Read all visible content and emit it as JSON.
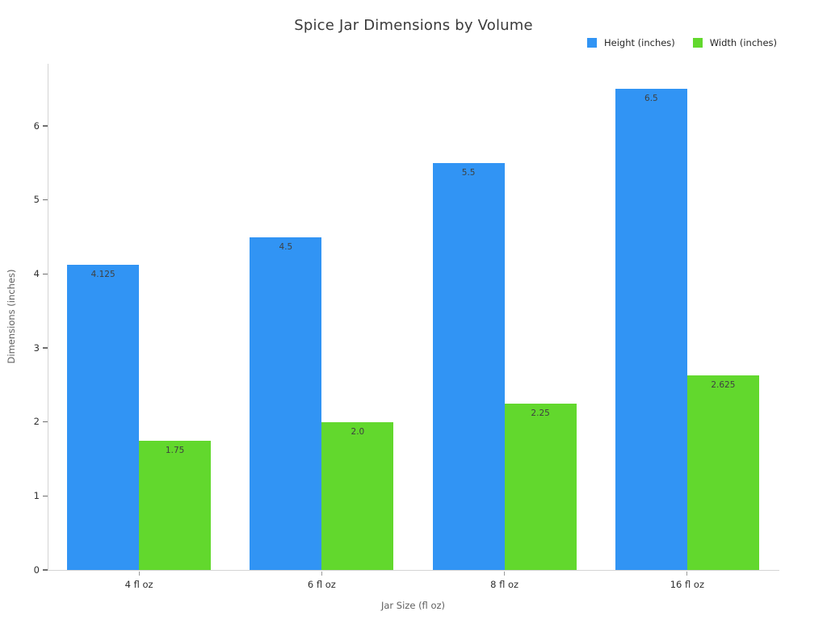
{
  "title": "Spice Jar Dimensions by Volume",
  "chart_data": {
    "type": "bar",
    "categories": [
      "4 fl oz",
      "6 fl oz",
      "8 fl oz",
      "16 fl oz"
    ],
    "series": [
      {
        "name": "Height (inches)",
        "color": "#3194f4",
        "values": [
          4.125,
          4.5,
          5.5,
          6.5
        ],
        "labels": [
          "4.125",
          "4.5",
          "5.5",
          "6.5"
        ]
      },
      {
        "name": "Width (inches)",
        "color": "#62d82d",
        "values": [
          1.75,
          2.0,
          2.25,
          2.625
        ],
        "labels": [
          "1.75",
          "2.0",
          "2.25",
          "2.625"
        ]
      }
    ],
    "xlabel": "Jar Size (fl oz)",
    "ylabel": "Dimensions (inches)",
    "yticks": [
      0,
      1,
      2,
      3,
      4,
      5,
      6
    ],
    "ylim": [
      0,
      6.84
    ],
    "grid": false,
    "legend_position": "top-right",
    "axis_line_color": "#d4d4d4",
    "value_label_color": "#3e4040"
  }
}
